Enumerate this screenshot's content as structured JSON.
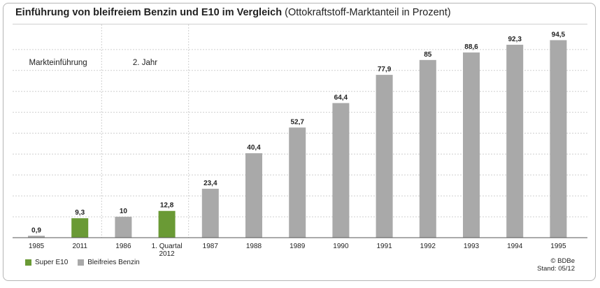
{
  "title": {
    "main": "Einführung von bleifreiem Benzin und E10 im Vergleich",
    "sub": "(Ottokraftstoff-Marktanteil in Prozent)"
  },
  "phases": [
    "Markteinführung",
    "2. Jahr"
  ],
  "legend": [
    {
      "name": "Super E10",
      "color": "#6a9a35"
    },
    {
      "name": "Bleifreies Benzin",
      "color": "#a9a9a9"
    }
  ],
  "credit": [
    "© BDBe",
    "Stand: 05/12"
  ],
  "chart_data": {
    "type": "bar",
    "categories": [
      [
        "1985"
      ],
      [
        "2011"
      ],
      [
        "1986"
      ],
      [
        "1. Quartal",
        "2012"
      ],
      [
        "1987"
      ],
      [
        "1988"
      ],
      [
        "1989"
      ],
      [
        "1990"
      ],
      [
        "1991"
      ],
      [
        "1992"
      ],
      [
        "1993"
      ],
      [
        "1994"
      ],
      [
        "1995"
      ]
    ],
    "values": [
      0.9,
      9.3,
      10,
      12.8,
      23.4,
      40.4,
      52.7,
      64.4,
      77.9,
      85,
      88.6,
      92.3,
      94.5
    ],
    "value_labels": [
      "0,9",
      "9,3",
      "10",
      "12,8",
      "23,4",
      "40,4",
      "52,7",
      "64,4",
      "77,9",
      "85",
      "88,6",
      "92,3",
      "94,5"
    ],
    "series_of_bar": [
      "Bleifreies Benzin",
      "Super E10",
      "Bleifreies Benzin",
      "Super E10",
      "Bleifreies Benzin",
      "Bleifreies Benzin",
      "Bleifreies Benzin",
      "Bleifreies Benzin",
      "Bleifreies Benzin",
      "Bleifreies Benzin",
      "Bleifreies Benzin",
      "Bleifreies Benzin",
      "Bleifreies Benzin"
    ],
    "ylim": [
      0,
      100
    ],
    "grid": true,
    "legend_position": "bottom-left"
  }
}
